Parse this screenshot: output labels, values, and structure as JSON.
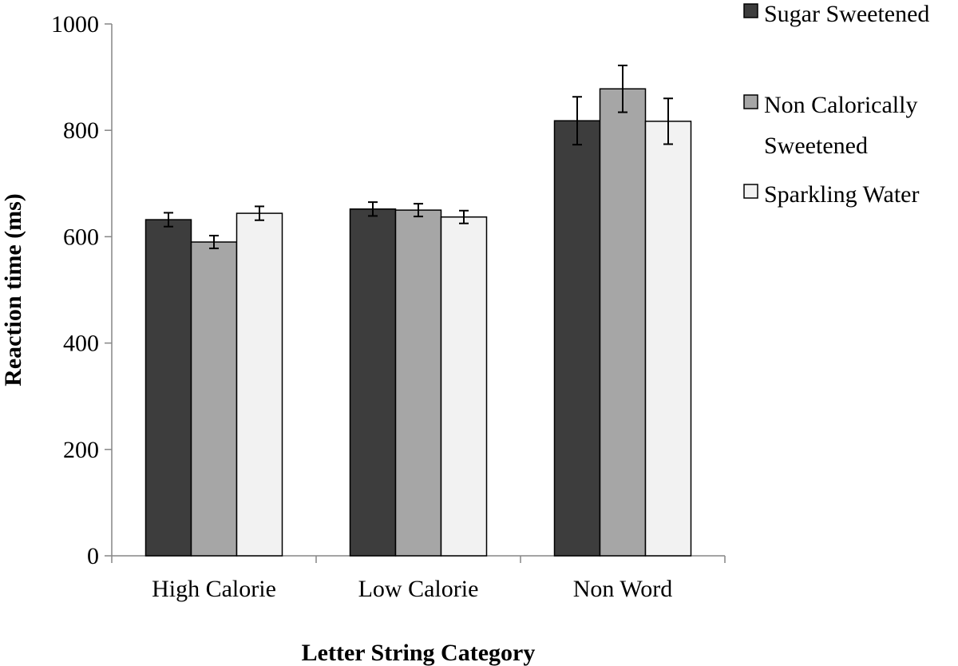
{
  "chart_data": {
    "type": "bar",
    "xlabel": "Letter String Category",
    "ylabel": "Reaction time (ms)",
    "ylim": [
      0,
      1000
    ],
    "yticks": [
      0,
      200,
      400,
      600,
      800,
      1000
    ],
    "grid": false,
    "legend_position": "top-right",
    "categories": [
      "High Calorie",
      "Low Calorie",
      "Non Word"
    ],
    "series": [
      {
        "name": "Sugar Sweetened",
        "legend_lines": [
          "Sugar Sweetened"
        ],
        "color": "#3d3d3d",
        "values": [
          632,
          652,
          818
        ],
        "errors": [
          13,
          13,
          45
        ]
      },
      {
        "name": "Non Calorically Sweetened",
        "legend_lines": [
          "Non Calorically",
          "Sweetened"
        ],
        "color": "#a6a6a6",
        "values": [
          590,
          650,
          878
        ],
        "errors": [
          12,
          12,
          44
        ]
      },
      {
        "name": "Sparkling Water",
        "legend_lines": [
          "Sparkling Water"
        ],
        "color": "#f2f2f2",
        "values": [
          644,
          637,
          817
        ],
        "errors": [
          13,
          12,
          43
        ]
      }
    ]
  }
}
